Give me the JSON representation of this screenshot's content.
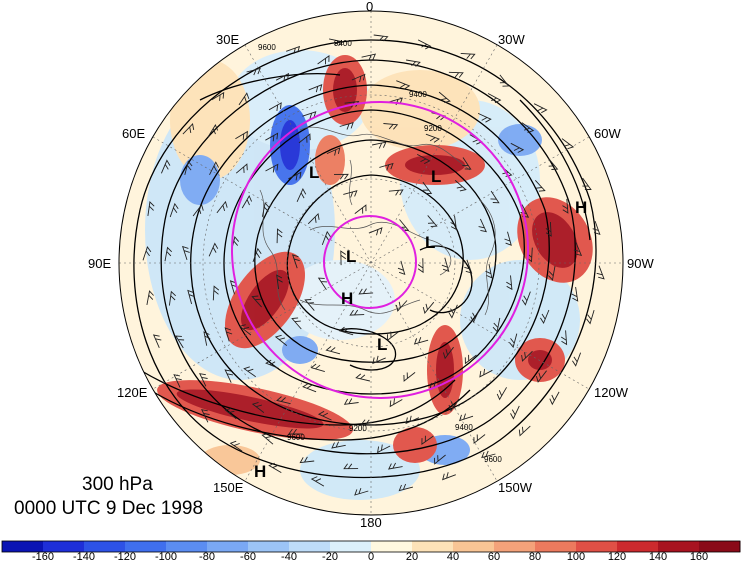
{
  "map": {
    "projection": "north-polar-stereographic",
    "longitude_labels": [
      {
        "text": "0",
        "lon": 0
      },
      {
        "text": "30W",
        "lon": -30
      },
      {
        "text": "60W",
        "lon": -60
      },
      {
        "text": "90W",
        "lon": -90
      },
      {
        "text": "120W",
        "lon": -120
      },
      {
        "text": "150W",
        "lon": -150
      },
      {
        "text": "180",
        "lon": 180
      },
      {
        "text": "150E",
        "lon": 150
      },
      {
        "text": "120E",
        "lon": 120
      },
      {
        "text": "90E",
        "lon": 90
      },
      {
        "text": "60E",
        "lon": 60
      },
      {
        "text": "30E",
        "lon": 30
      }
    ],
    "pressure_centers": [
      "L",
      "L",
      "L",
      "L",
      "L",
      "H",
      "H",
      "H"
    ],
    "contour_labels": [
      "9400",
      "9200",
      "9600",
      "9400",
      "9600",
      "9200",
      "9600",
      "9400"
    ],
    "highlight_circle_color": "#e020e0"
  },
  "title": {
    "level": "300 hPa",
    "time": "0000 UTC 9 Dec 1998"
  },
  "colorbar": {
    "ticks": [
      "-160",
      "-140",
      "-120",
      "-100",
      "-80",
      "-60",
      "-40",
      "-20",
      "0",
      "20",
      "40",
      "60",
      "80",
      "100",
      "120",
      "140",
      "160"
    ],
    "colors": [
      "#1e2fd8",
      "#2d52e6",
      "#3f6fee",
      "#5b8df2",
      "#7aa8f4",
      "#9cc4f6",
      "#bedcf8",
      "#dcf0fb",
      "#fff8e0",
      "#fde2b8",
      "#f9c595",
      "#f4a27a",
      "#ec7a5e",
      "#e05046",
      "#cc2a2e",
      "#a81320",
      "#8a0a18"
    ]
  }
}
